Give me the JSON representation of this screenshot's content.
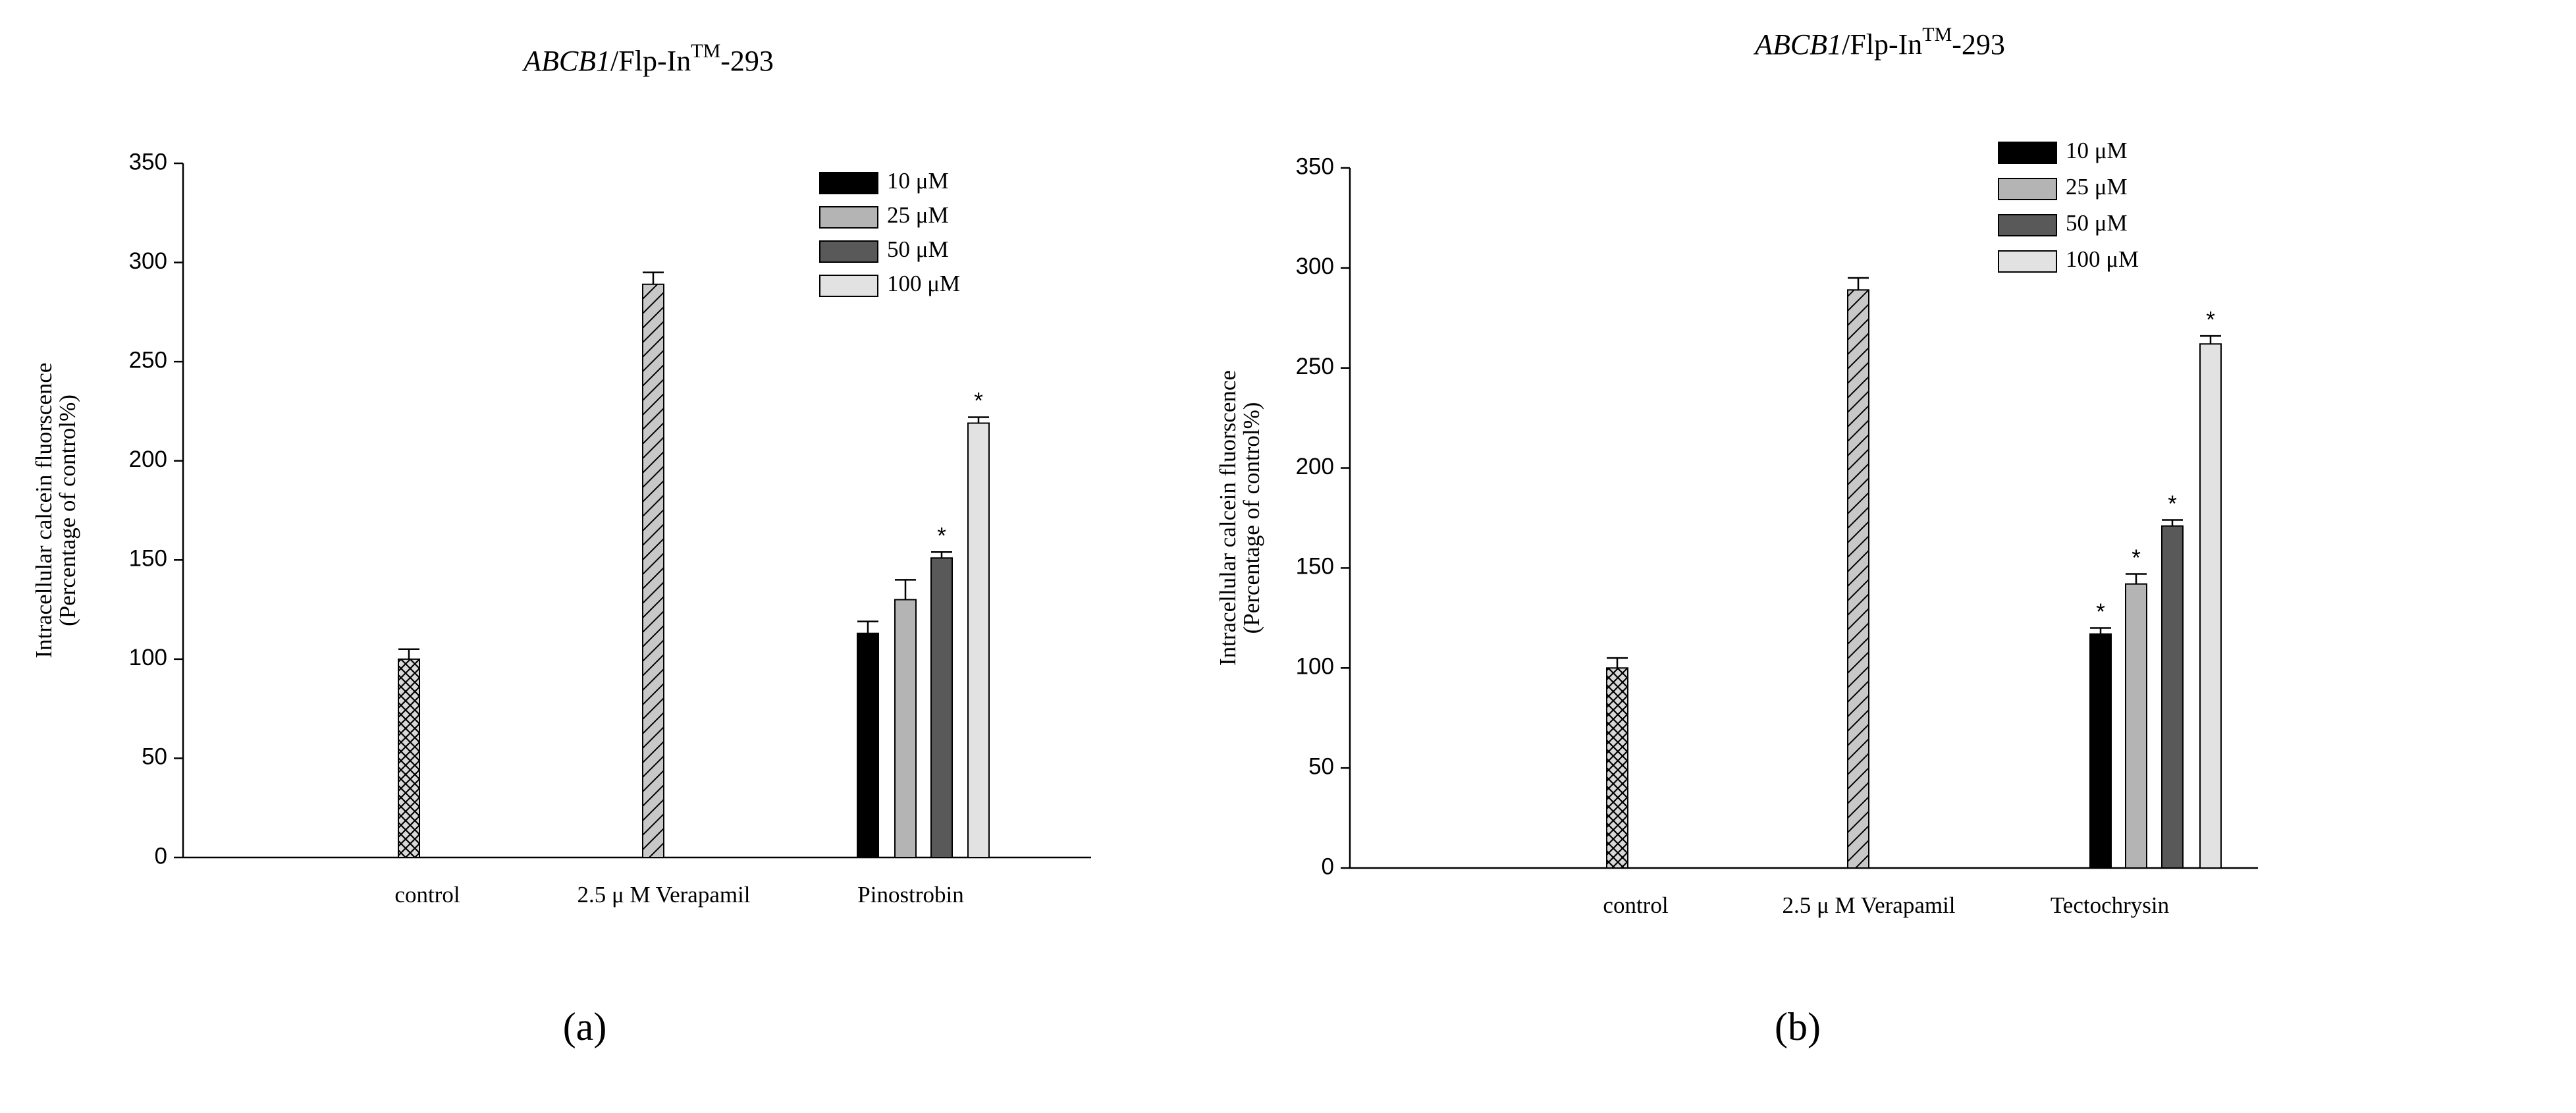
{
  "chart_data": [
    {
      "type": "bar",
      "title": [
        "ABCB1",
        "/Flp-In",
        "TM",
        "-293"
      ],
      "panel_label": "(a)",
      "ylabel": [
        "Intracellular calcein fluorscence",
        "(Percentage of control%)"
      ],
      "categories": [
        "control",
        "2.5 μ M Verapamil",
        "Pinostrobin"
      ],
      "ylim": [
        0,
        350
      ],
      "yticks": [
        0,
        50,
        100,
        150,
        200,
        250,
        300,
        350
      ],
      "grid": false,
      "legend": "upper right",
      "series": [
        {
          "pattern": "crosshatch",
          "color": "#d8d8d8",
          "values": [
            100,
            null,
            null
          ],
          "errors": [
            5,
            null,
            null
          ]
        },
        {
          "pattern": "diagonal",
          "color": "#c8c8c8",
          "values": [
            null,
            289,
            null
          ],
          "errors": [
            null,
            6,
            null
          ]
        },
        {
          "name": "10 μM",
          "color": "#000000",
          "values": [
            null,
            null,
            113
          ],
          "errors": [
            null,
            null,
            6
          ]
        },
        {
          "name": "25 μM",
          "color": "#b4b4b4",
          "values": [
            null,
            null,
            130
          ],
          "errors": [
            null,
            null,
            10
          ]
        },
        {
          "name": "50 μM",
          "color": "#595959",
          "values": [
            null,
            null,
            151
          ],
          "errors": [
            null,
            null,
            3
          ],
          "markers": [
            null,
            null,
            "*"
          ]
        },
        {
          "name": "100 μM",
          "color": "#e2e2e2",
          "values": [
            null,
            null,
            219
          ],
          "errors": [
            null,
            null,
            3
          ],
          "markers": [
            null,
            null,
            "*"
          ]
        }
      ]
    },
    {
      "type": "bar",
      "title": [
        "ABCB1",
        "/Flp-In",
        "TM",
        "-293"
      ],
      "panel_label": "(b)",
      "ylabel": [
        "Intracellular calcein fluorscence",
        "(Percentage of control%)"
      ],
      "categories": [
        "control",
        "2.5 μ M Verapamil",
        "Tectochrysin"
      ],
      "ylim": [
        0,
        350
      ],
      "yticks": [
        0,
        50,
        100,
        150,
        200,
        250,
        300,
        350
      ],
      "grid": false,
      "legend": "upper right",
      "series": [
        {
          "pattern": "crosshatch",
          "color": "#d8d8d8",
          "values": [
            100,
            null,
            null
          ],
          "errors": [
            5,
            null,
            null
          ]
        },
        {
          "pattern": "diagonal",
          "color": "#c8c8c8",
          "values": [
            null,
            289,
            null
          ],
          "errors": [
            null,
            6,
            null
          ]
        },
        {
          "name": "10 μM",
          "color": "#000000",
          "values": [
            null,
            null,
            117
          ],
          "errors": [
            null,
            null,
            3
          ],
          "markers": [
            null,
            null,
            "*"
          ]
        },
        {
          "name": "25 μM",
          "color": "#b4b4b4",
          "values": [
            null,
            null,
            142
          ],
          "errors": [
            null,
            null,
            5
          ],
          "markers": [
            null,
            null,
            "*"
          ]
        },
        {
          "name": "50 μM",
          "color": "#595959",
          "values": [
            null,
            null,
            171
          ],
          "errors": [
            null,
            null,
            3
          ],
          "markers": [
            null,
            null,
            "*"
          ]
        },
        {
          "name": "100 μM",
          "color": "#e2e2e2",
          "values": [
            null,
            null,
            262
          ],
          "errors": [
            null,
            null,
            4
          ],
          "markers": [
            null,
            null,
            "*"
          ]
        }
      ]
    }
  ]
}
